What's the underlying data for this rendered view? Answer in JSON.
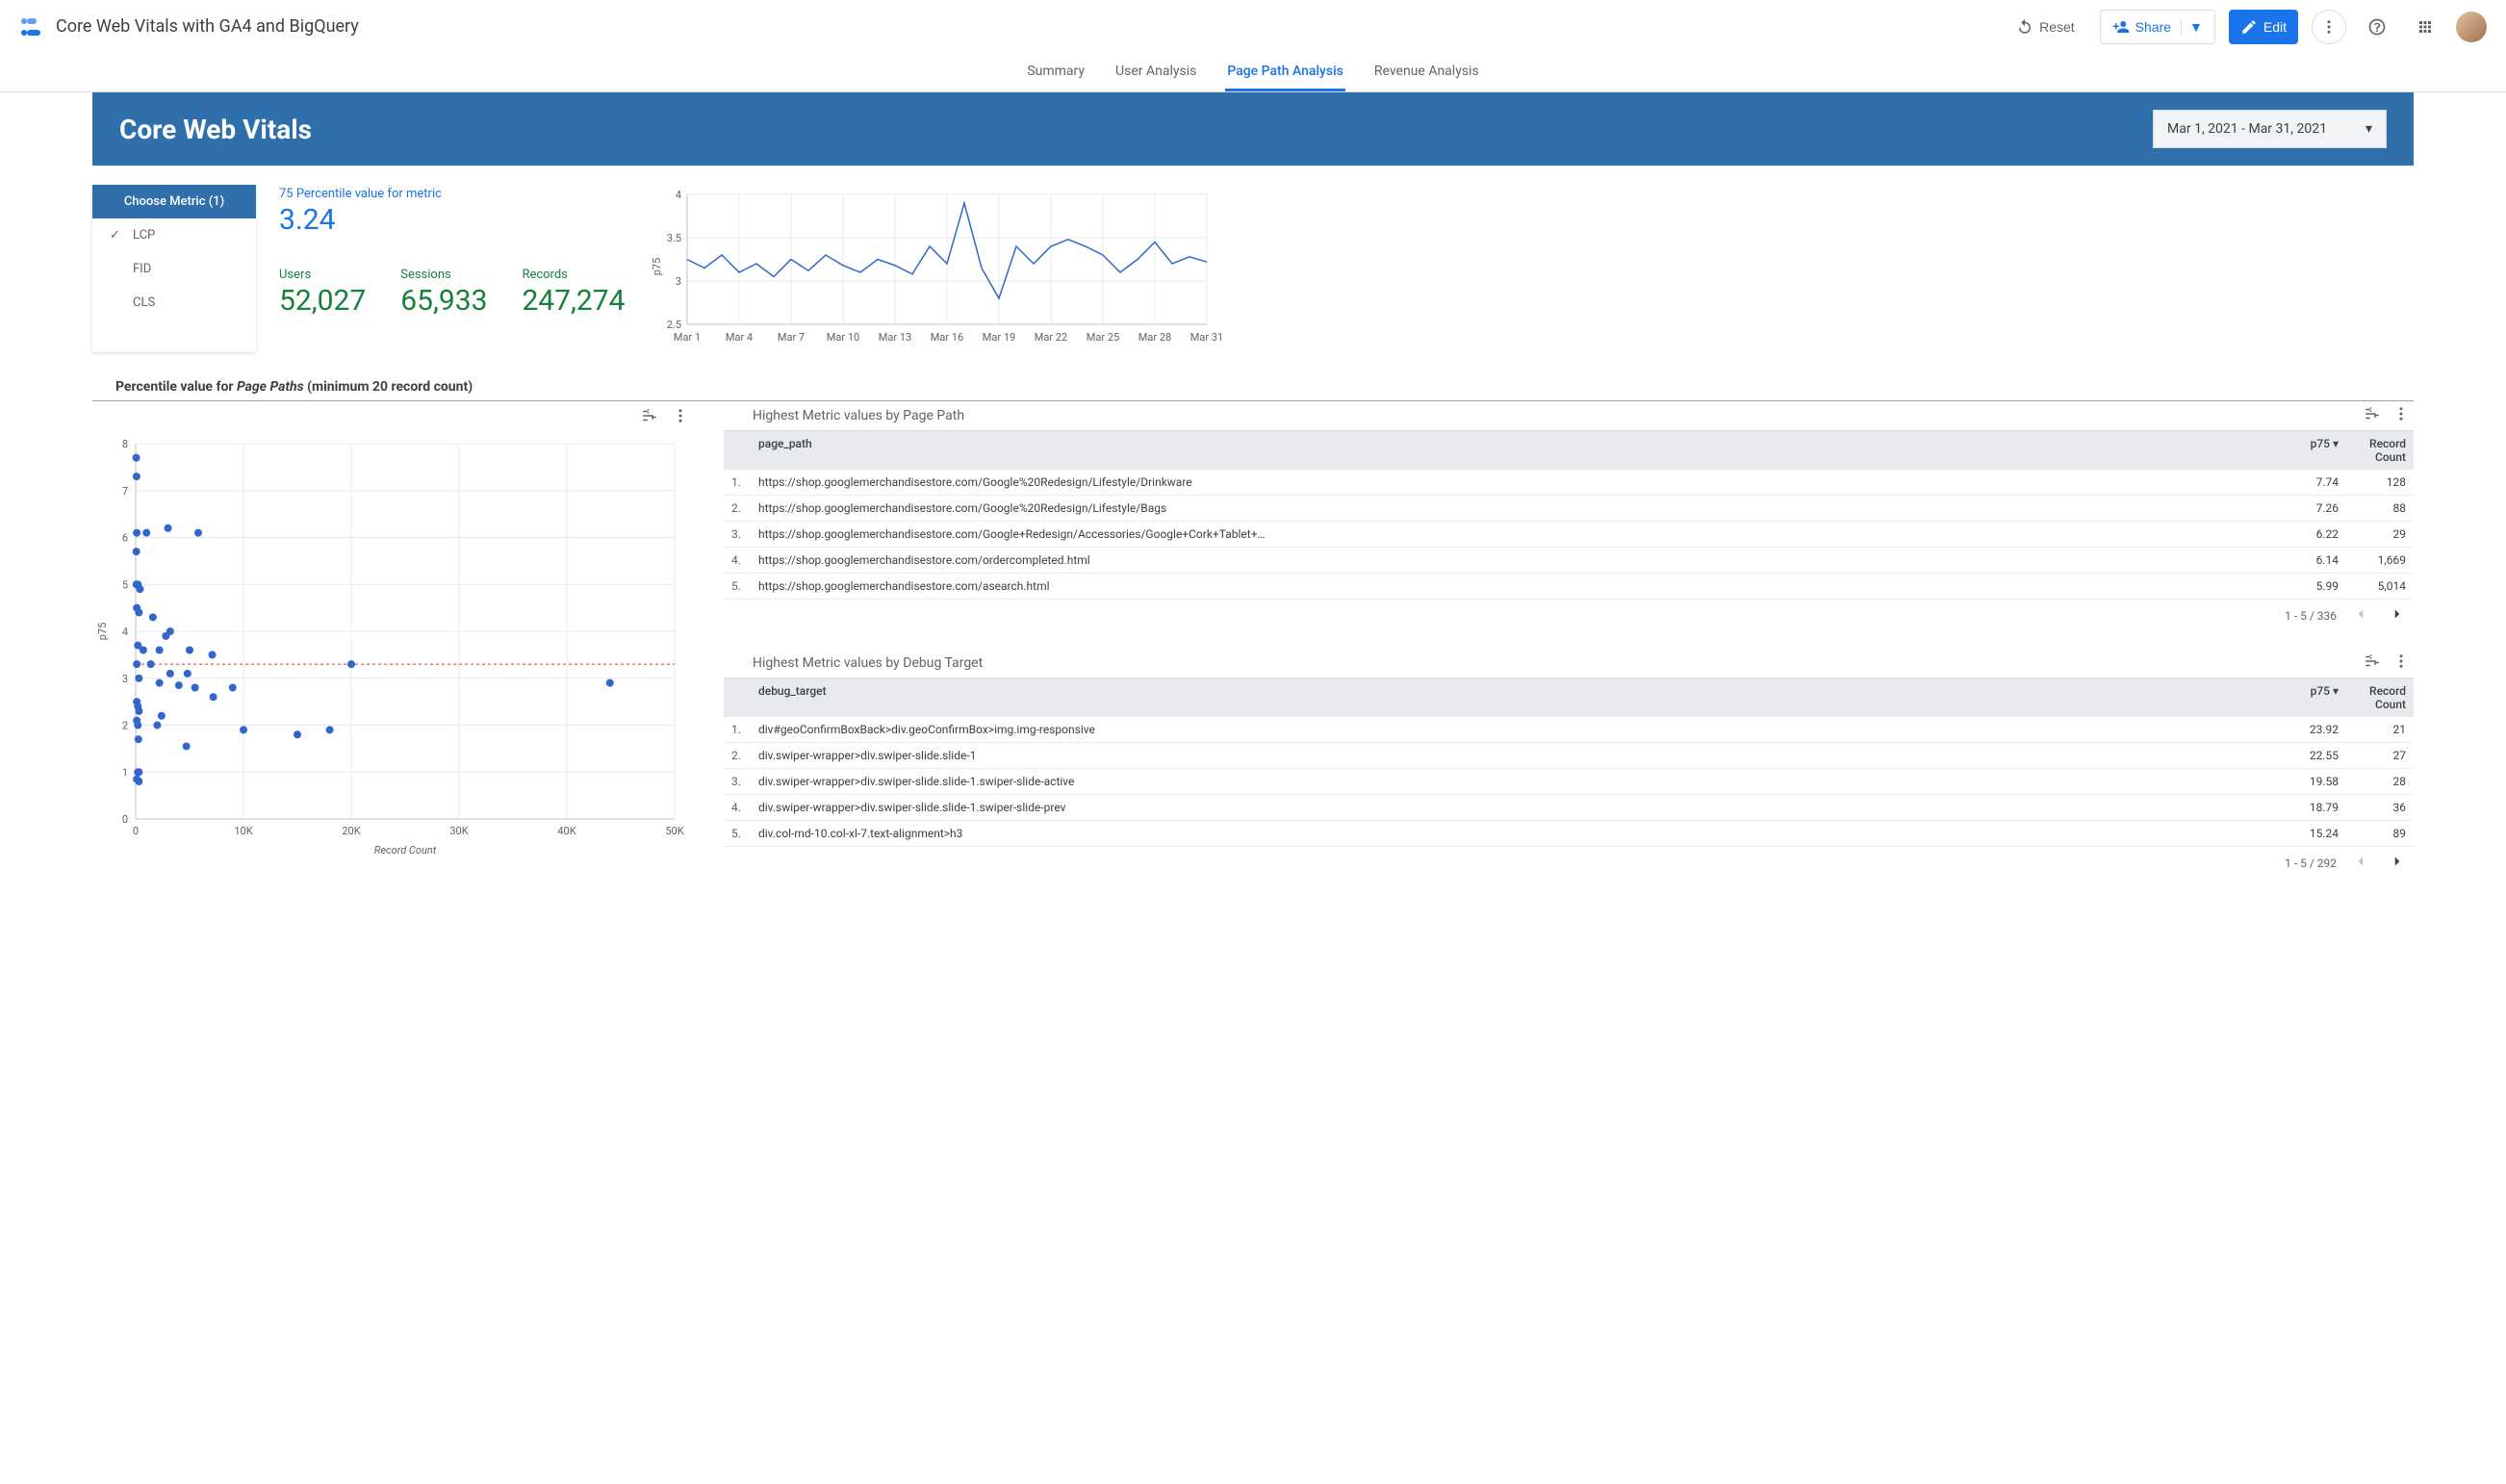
{
  "header": {
    "title": "Core Web Vitals with GA4 and BigQuery",
    "reset": "Reset",
    "share": "Share",
    "edit": "Edit"
  },
  "tabs": [
    "Summary",
    "User Analysis",
    "Page Path Analysis",
    "Revenue Analysis"
  ],
  "active_tab": 2,
  "banner": {
    "title": "Core Web Vitals",
    "date_range": "Mar 1, 2021 - Mar 31, 2021"
  },
  "metric_selector": {
    "header": "Choose Metric (1)",
    "items": [
      {
        "label": "LCP",
        "selected": true
      },
      {
        "label": "FID",
        "selected": false
      },
      {
        "label": "CLS",
        "selected": false
      }
    ]
  },
  "kpis": {
    "p75_label": "75 Percentile value for metric",
    "p75_value": "3.24",
    "users_label": "Users",
    "users_value": "52,027",
    "sessions_label": "Sessions",
    "sessions_value": "65,933",
    "records_label": "Records",
    "records_value": "247,274"
  },
  "line_chart": {
    "type": "line",
    "color": "#3366cc",
    "grid_color": "#e8eaed",
    "axis_color": "#bdc1c6",
    "ylabel": "p75",
    "label_fontsize": 11,
    "ylim": [
      2.5,
      4.0
    ],
    "ytick_step": 0.5,
    "x_labels": [
      "Mar 1",
      "Mar 4",
      "Mar 7",
      "Mar 10",
      "Mar 13",
      "Mar 16",
      "Mar 19",
      "Mar 22",
      "Mar 25",
      "Mar 28",
      "Mar 31"
    ],
    "values": [
      3.25,
      3.15,
      3.3,
      3.1,
      3.2,
      3.05,
      3.25,
      3.12,
      3.3,
      3.18,
      3.1,
      3.25,
      3.18,
      3.08,
      3.4,
      3.2,
      3.9,
      3.15,
      2.8,
      3.4,
      3.2,
      3.4,
      3.48,
      3.4,
      3.3,
      3.1,
      3.25,
      3.45,
      3.2,
      3.28,
      3.22
    ],
    "stroke_width": 1.5
  },
  "section_title_prefix": "Percentile value for ",
  "section_title_em": "Page Paths",
  "section_title_suffix": " (minimum 20 record count)",
  "scatter": {
    "type": "scatter",
    "xlabel": "Record Count",
    "ylabel": "p75",
    "xlim": [
      0,
      50000
    ],
    "xtick_step": 10000,
    "ylim": [
      0,
      8
    ],
    "ytick_step": 1,
    "marker_color": "#3366cc",
    "marker_radius": 4,
    "reference_line_y": 3.3,
    "reference_line_color": "#d93025",
    "grid_color": "#e8eaed",
    "axis_color": "#bdc1c6",
    "points": [
      [
        50,
        7.7
      ],
      [
        80,
        7.3
      ],
      [
        60,
        5.7
      ],
      [
        100,
        4.5
      ],
      [
        60,
        5.0
      ],
      [
        100,
        6.1
      ],
      [
        1000,
        6.1
      ],
      [
        3000,
        6.2
      ],
      [
        5800,
        6.1
      ],
      [
        200,
        5.0
      ],
      [
        400,
        4.9
      ],
      [
        300,
        4.4
      ],
      [
        1600,
        4.3
      ],
      [
        3200,
        4.0
      ],
      [
        2800,
        3.9
      ],
      [
        200,
        3.7
      ],
      [
        700,
        3.6
      ],
      [
        2200,
        3.6
      ],
      [
        5000,
        3.6
      ],
      [
        7100,
        3.5
      ],
      [
        100,
        3.3
      ],
      [
        1400,
        3.3
      ],
      [
        3200,
        3.1
      ],
      [
        4800,
        3.1
      ],
      [
        300,
        3.0
      ],
      [
        2200,
        2.9
      ],
      [
        5500,
        2.8
      ],
      [
        9000,
        2.8
      ],
      [
        4000,
        2.85
      ],
      [
        7200,
        2.6
      ],
      [
        100,
        2.5
      ],
      [
        200,
        2.4
      ],
      [
        300,
        2.3
      ],
      [
        2400,
        2.2
      ],
      [
        100,
        2.1
      ],
      [
        200,
        2.0
      ],
      [
        2000,
        2.0
      ],
      [
        10000,
        1.9
      ],
      [
        250,
        1.7
      ],
      [
        4700,
        1.55
      ],
      [
        200,
        1.0
      ],
      [
        300,
        1.0
      ],
      [
        100,
        0.85
      ],
      [
        300,
        0.8
      ],
      [
        20000,
        3.3
      ],
      [
        44000,
        2.9
      ],
      [
        15000,
        1.8
      ],
      [
        18000,
        1.9
      ]
    ]
  },
  "table_page_path": {
    "title": "Highest Metric values by Page Path",
    "header_key": "page_path",
    "header_p75": "p75",
    "header_count": "Record Count",
    "rows": [
      {
        "idx": "1.",
        "path": "https://shop.googlemerchandisestore.com/Google%20Redesign/Lifestyle/Drinkware",
        "p75": "7.74",
        "count": "128"
      },
      {
        "idx": "2.",
        "path": "https://shop.googlemerchandisestore.com/Google%20Redesign/Lifestyle/Bags",
        "p75": "7.26",
        "count": "88"
      },
      {
        "idx": "3.",
        "path": "https://shop.googlemerchandisestore.com/Google+Redesign/Accessories/Google+Cork+Tablet+…",
        "p75": "6.22",
        "count": "29"
      },
      {
        "idx": "4.",
        "path": "https://shop.googlemerchandisestore.com/ordercompleted.html",
        "p75": "6.14",
        "count": "1,669"
      },
      {
        "idx": "5.",
        "path": "https://shop.googlemerchandisestore.com/asearch.html",
        "p75": "5.99",
        "count": "5,014"
      }
    ],
    "pager": "1 - 5 / 336"
  },
  "table_debug": {
    "title": "Highest Metric values by Debug Target",
    "header_key": "debug_target",
    "header_p75": "p75",
    "header_count": "Record Count",
    "rows": [
      {
        "idx": "1.",
        "path": "div#geoConfirmBoxBack>div.geoConfirmBox>img.img-responsive",
        "p75": "23.92",
        "count": "21"
      },
      {
        "idx": "2.",
        "path": "div.swiper-wrapper>div.swiper-slide.slide-1",
        "p75": "22.55",
        "count": "27"
      },
      {
        "idx": "3.",
        "path": "div.swiper-wrapper>div.swiper-slide.slide-1.swiper-slide-active",
        "p75": "19.58",
        "count": "28"
      },
      {
        "idx": "4.",
        "path": "div.swiper-wrapper>div.swiper-slide.slide-1.swiper-slide-prev",
        "p75": "18.79",
        "count": "36"
      },
      {
        "idx": "5.",
        "path": "div.col-md-10.col-xl-7.text-alignment>h3",
        "p75": "15.24",
        "count": "89"
      }
    ],
    "pager": "1 - 5 / 292"
  }
}
